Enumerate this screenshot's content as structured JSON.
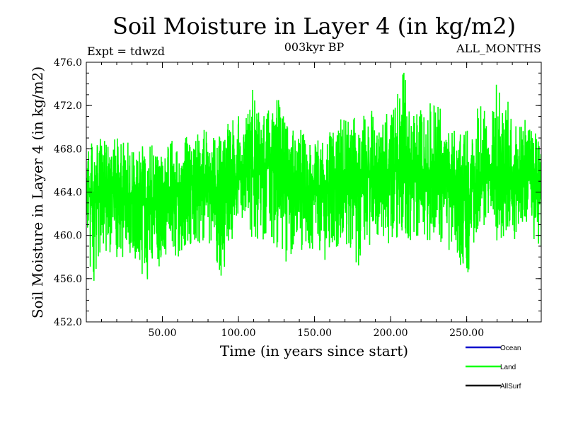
{
  "chart_data": {
    "type": "line",
    "title": "Soil Moisture in Layer 4 (in kg/m2)",
    "subtitle_left": "Expt = tdwzd",
    "subtitle_center": "003kyr BP",
    "subtitle_right": "ALL_MONTHS",
    "xlabel": "Time (in years since start)",
    "ylabel": "Soil Moisture in Layer 4 (in kg/m2)",
    "xlim": [
      0,
      299
    ],
    "ylim": [
      452.0,
      476.0
    ],
    "x_ticks": [
      50,
      100,
      150,
      200,
      250
    ],
    "x_tick_labels": [
      "50.00",
      "100.00",
      "150.00",
      "200.00",
      "250.00"
    ],
    "y_ticks": [
      452,
      456,
      460,
      464,
      468,
      472,
      476
    ],
    "y_tick_labels": [
      "452.0",
      "456.0",
      "460.0",
      "464.0",
      "468.0",
      "472.0",
      "476.0"
    ],
    "series": [
      {
        "name": "Land",
        "color": "#00ff00",
        "x": [
          0,
          5,
          10,
          15,
          20,
          25,
          30,
          35,
          40,
          45,
          50,
          55,
          60,
          65,
          70,
          75,
          80,
          85,
          90,
          95,
          100,
          105,
          110,
          115,
          120,
          125,
          130,
          135,
          140,
          145,
          150,
          155,
          160,
          165,
          170,
          175,
          180,
          185,
          190,
          195,
          200,
          205,
          210,
          215,
          220,
          225,
          230,
          235,
          240,
          245,
          250,
          255,
          260,
          265,
          270,
          275,
          280,
          285,
          290,
          295,
          299
        ],
        "values": [
          464.0,
          463.5,
          464.5,
          465.0,
          464.0,
          463.5,
          464.0,
          463.0,
          462.5,
          462.5,
          463.5,
          464.0,
          463.5,
          464.5,
          465.0,
          464.5,
          465.0,
          464.5,
          464.5,
          465.5,
          465.5,
          466.5,
          466.0,
          465.5,
          466.5,
          466.5,
          465.5,
          464.5,
          464.0,
          463.5,
          464.5,
          464.0,
          464.5,
          465.0,
          465.5,
          465.0,
          465.5,
          465.5,
          466.0,
          465.5,
          466.5,
          466.0,
          466.0,
          465.5,
          465.5,
          466.0,
          466.5,
          465.5,
          465.0,
          464.0,
          463.5,
          464.5,
          465.0,
          465.5,
          466.5,
          466.0,
          465.5,
          466.0,
          466.0,
          466.0,
          465.0
        ],
        "min": [
          458.5,
          455.8,
          457.5,
          458.5,
          458.0,
          458.0,
          458.5,
          457.0,
          455.3,
          456.0,
          458.0,
          458.5,
          458.0,
          458.5,
          459.0,
          458.5,
          459.5,
          458.0,
          455.6,
          459.0,
          460.5,
          459.5,
          460.0,
          459.5,
          460.0,
          457.5,
          457.0,
          457.0,
          458.5,
          458.0,
          457.5,
          457.0,
          459.0,
          458.5,
          459.5,
          458.0,
          457.0,
          459.0,
          459.5,
          460.0,
          459.0,
          460.0,
          459.0,
          459.0,
          460.0,
          459.5,
          460.0,
          459.0,
          458.5,
          457.5,
          456.2,
          458.5,
          460.0,
          460.5,
          459.5,
          460.0,
          459.5,
          460.0,
          460.5,
          459.5,
          459.0
        ],
        "max": [
          468.5,
          468.5,
          469.5,
          468.5,
          469.0,
          468.5,
          471.0,
          469.0,
          468.0,
          468.5,
          468.0,
          469.0,
          468.0,
          469.5,
          469.0,
          469.5,
          470.0,
          469.5,
          470.0,
          470.5,
          471.0,
          471.5,
          474.5,
          470.5,
          472.0,
          472.5,
          472.5,
          469.5,
          470.5,
          468.5,
          469.0,
          468.5,
          469.5,
          470.5,
          471.0,
          470.5,
          472.0,
          471.5,
          471.5,
          470.5,
          472.0,
          474.2,
          475.3,
          472.5,
          471.5,
          472.0,
          473.0,
          470.5,
          470.0,
          470.5,
          469.5,
          471.5,
          472.0,
          470.5,
          474.3,
          473.0,
          471.5,
          471.0,
          470.5,
          470.0,
          469.5
        ]
      }
    ],
    "legend": {
      "position": "bottom-right",
      "entries": [
        {
          "label": "Ocean",
          "color": "#0000cc"
        },
        {
          "label": "Land",
          "color": "#00ff00"
        },
        {
          "label": "AllSurf",
          "color": "#000000"
        }
      ]
    }
  }
}
